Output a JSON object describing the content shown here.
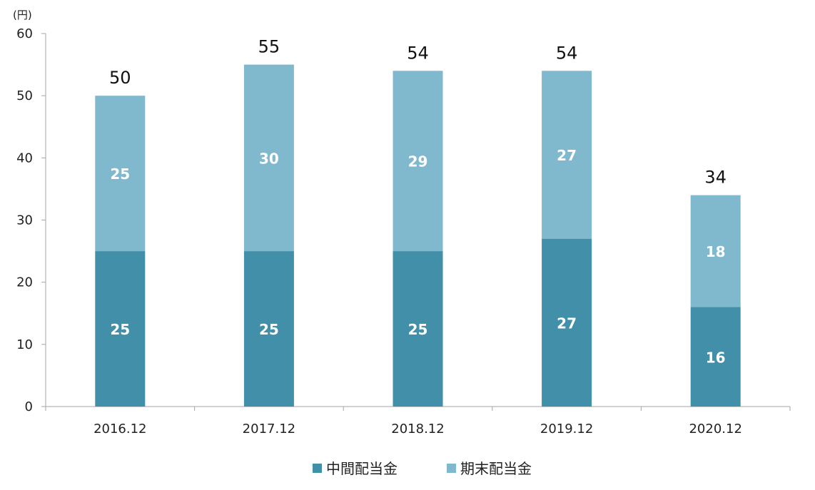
{
  "chart_data": {
    "type": "bar",
    "stacked": true,
    "unit": "(円)",
    "categories": [
      "2016.12",
      "2017.12",
      "2018.12",
      "2019.12",
      "2020.12"
    ],
    "series": [
      {
        "name": "中間配当金",
        "values": [
          25,
          25,
          25,
          27,
          16
        ],
        "color": "#418FA8"
      },
      {
        "name": "期末配当金",
        "values": [
          25,
          30,
          29,
          27,
          18
        ],
        "color": "#80B9CD"
      }
    ],
    "totals": [
      50,
      55,
      54,
      54,
      34
    ],
    "ylim": [
      0,
      60
    ],
    "yticks": [
      0,
      10,
      20,
      30,
      40,
      50,
      60
    ],
    "grid": false,
    "legend_position": "bottom-center"
  }
}
